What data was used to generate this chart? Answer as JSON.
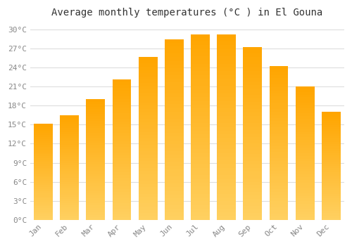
{
  "title": "Average monthly temperatures (°C ) in El Gouna",
  "months": [
    "Jan",
    "Feb",
    "Mar",
    "Apr",
    "May",
    "Jun",
    "Jul",
    "Aug",
    "Sep",
    "Oct",
    "Nov",
    "Dec"
  ],
  "temperatures": [
    15.2,
    16.5,
    19.0,
    22.2,
    25.7,
    28.5,
    29.3,
    29.3,
    27.3,
    24.3,
    21.0,
    17.0
  ],
  "bar_color_bottom": "#FFD060",
  "bar_color_top": "#FFA500",
  "background_color": "#FFFFFF",
  "plot_bg_color": "#FFFFFF",
  "grid_color": "#DDDDDD",
  "ytick_labels": [
    "0°C",
    "3°C",
    "6°C",
    "9°C",
    "12°C",
    "15°C",
    "18°C",
    "21°C",
    "24°C",
    "27°C",
    "30°C"
  ],
  "ytick_values": [
    0,
    3,
    6,
    9,
    12,
    15,
    18,
    21,
    24,
    27,
    30
  ],
  "ylim": [
    0,
    31
  ],
  "title_fontsize": 10,
  "tick_fontsize": 8,
  "font_color": "#888888",
  "title_color": "#333333"
}
